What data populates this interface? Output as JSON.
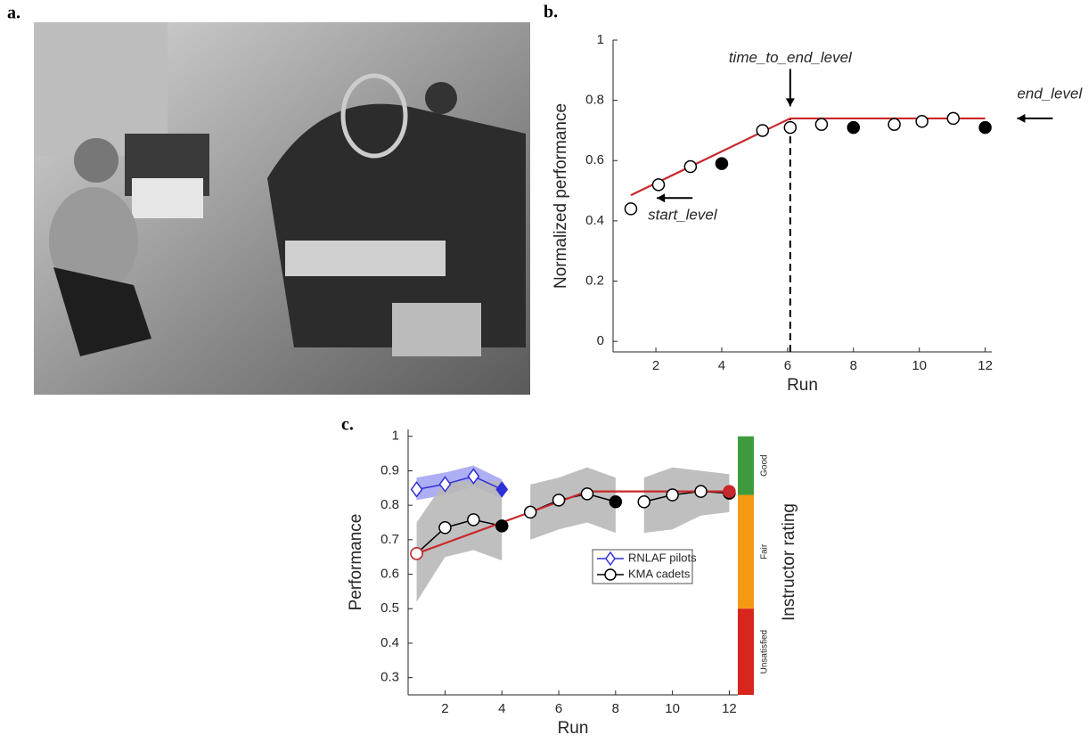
{
  "photo": {
    "panel_label": "a."
  },
  "chart_data": [
    {
      "type": "scatter",
      "panel_label": "b.",
      "xlabel": "Run",
      "ylabel": "Normalized performance",
      "xlim": [
        0.7,
        12.2
      ],
      "ylim": [
        -0.035,
        1
      ],
      "xticks": [
        2,
        4,
        6,
        8,
        10,
        12
      ],
      "yticks": [
        0,
        0.2,
        0.4,
        0.6,
        0.8,
        1
      ],
      "series": [
        {
          "color": "#000000",
          "x": [
            1.24,
            2.08,
            3.05,
            4.0,
            5.24,
            6.08,
            7.03,
            8.0,
            9.24,
            10.08,
            11.03,
            12.0
          ],
          "values": [
            0.44,
            0.52,
            0.58,
            0.59,
            0.7,
            0.71,
            0.72,
            0.71,
            0.72,
            0.73,
            0.74,
            0.71
          ],
          "filled": [
            false,
            false,
            false,
            true,
            false,
            false,
            false,
            true,
            false,
            false,
            false,
            true
          ]
        }
      ],
      "fit": {
        "color": "#c8282d",
        "x": [
          1.24,
          6.08,
          12.0
        ],
        "values": [
          0.485,
          0.74,
          0.74
        ]
      },
      "vline": {
        "x": 6.08,
        "y": 0.74
      },
      "annotations": [
        {
          "text": "time_to_end_level",
          "x": 6.08,
          "y": 0.78,
          "direction": "down"
        },
        {
          "text": "end_level",
          "x": 12.97,
          "y": 0.74,
          "direction": "left",
          "side": "above"
        },
        {
          "text": "start_level",
          "x": 2.03,
          "y": 0.476,
          "direction": "left",
          "side": "below"
        }
      ]
    },
    {
      "type": "line",
      "panel_label": "c.",
      "xlabel": "Run",
      "ylabel": "Performance",
      "y2label": "Instructor rating",
      "xlim": [
        0.7,
        12.3
      ],
      "ylim": [
        0.25,
        1.02
      ],
      "xticks": [
        2,
        4,
        6,
        8,
        10,
        12
      ],
      "yticks": [
        0.3,
        0.4,
        0.5,
        0.6,
        0.7,
        0.8,
        0.9,
        1
      ],
      "series": [
        {
          "name": "RNLAF pilots",
          "color": "#3030d8",
          "marker": "diamond",
          "band_color": "#8c8cf0",
          "x": [
            1,
            2,
            3,
            4
          ],
          "values": [
            0.846,
            0.861,
            0.884,
            0.846
          ],
          "filled": [
            false,
            false,
            false,
            true
          ],
          "band_upper": [
            0.88,
            0.895,
            0.915,
            0.875
          ],
          "band_lower": [
            0.815,
            0.83,
            0.855,
            0.82
          ]
        },
        {
          "name": "KMA cadets",
          "color": "#000000",
          "marker": "circle",
          "band_color": "#b8b8b8",
          "x": [
            1,
            2,
            3,
            4,
            4.5,
            5,
            6,
            7,
            8,
            8.5,
            9,
            10,
            11,
            12
          ],
          "values": [
            0.66,
            0.735,
            0.758,
            0.74,
            null,
            0.78,
            0.815,
            0.833,
            0.81,
            null,
            0.81,
            0.83,
            0.84,
            0.835
          ],
          "filled": [
            false,
            false,
            false,
            true,
            false,
            false,
            false,
            false,
            true,
            false,
            false,
            false,
            false,
            true
          ],
          "band_upper": [
            0.75,
            0.87,
            0.87,
            0.87,
            null,
            0.86,
            0.88,
            0.91,
            0.88,
            null,
            0.88,
            0.91,
            0.9,
            0.89
          ],
          "band_lower": [
            0.52,
            0.65,
            0.67,
            0.64,
            null,
            0.7,
            0.73,
            0.75,
            0.72,
            null,
            0.72,
            0.73,
            0.77,
            0.78
          ]
        }
      ],
      "fit": {
        "color": "#c8282d",
        "x": [
          1,
          7,
          12
        ],
        "values": [
          0.66,
          0.84,
          0.84
        ]
      },
      "rating_bands": [
        {
          "label": "Good",
          "from": 0.83,
          "to": 1.0,
          "color": "#3d9b3d"
        },
        {
          "label": "Fair",
          "from": 0.5,
          "to": 0.83,
          "color": "#f39a12"
        },
        {
          "label": "Unsatisfied",
          "from": 0.25,
          "to": 0.5,
          "color": "#d8261d"
        }
      ]
    }
  ]
}
